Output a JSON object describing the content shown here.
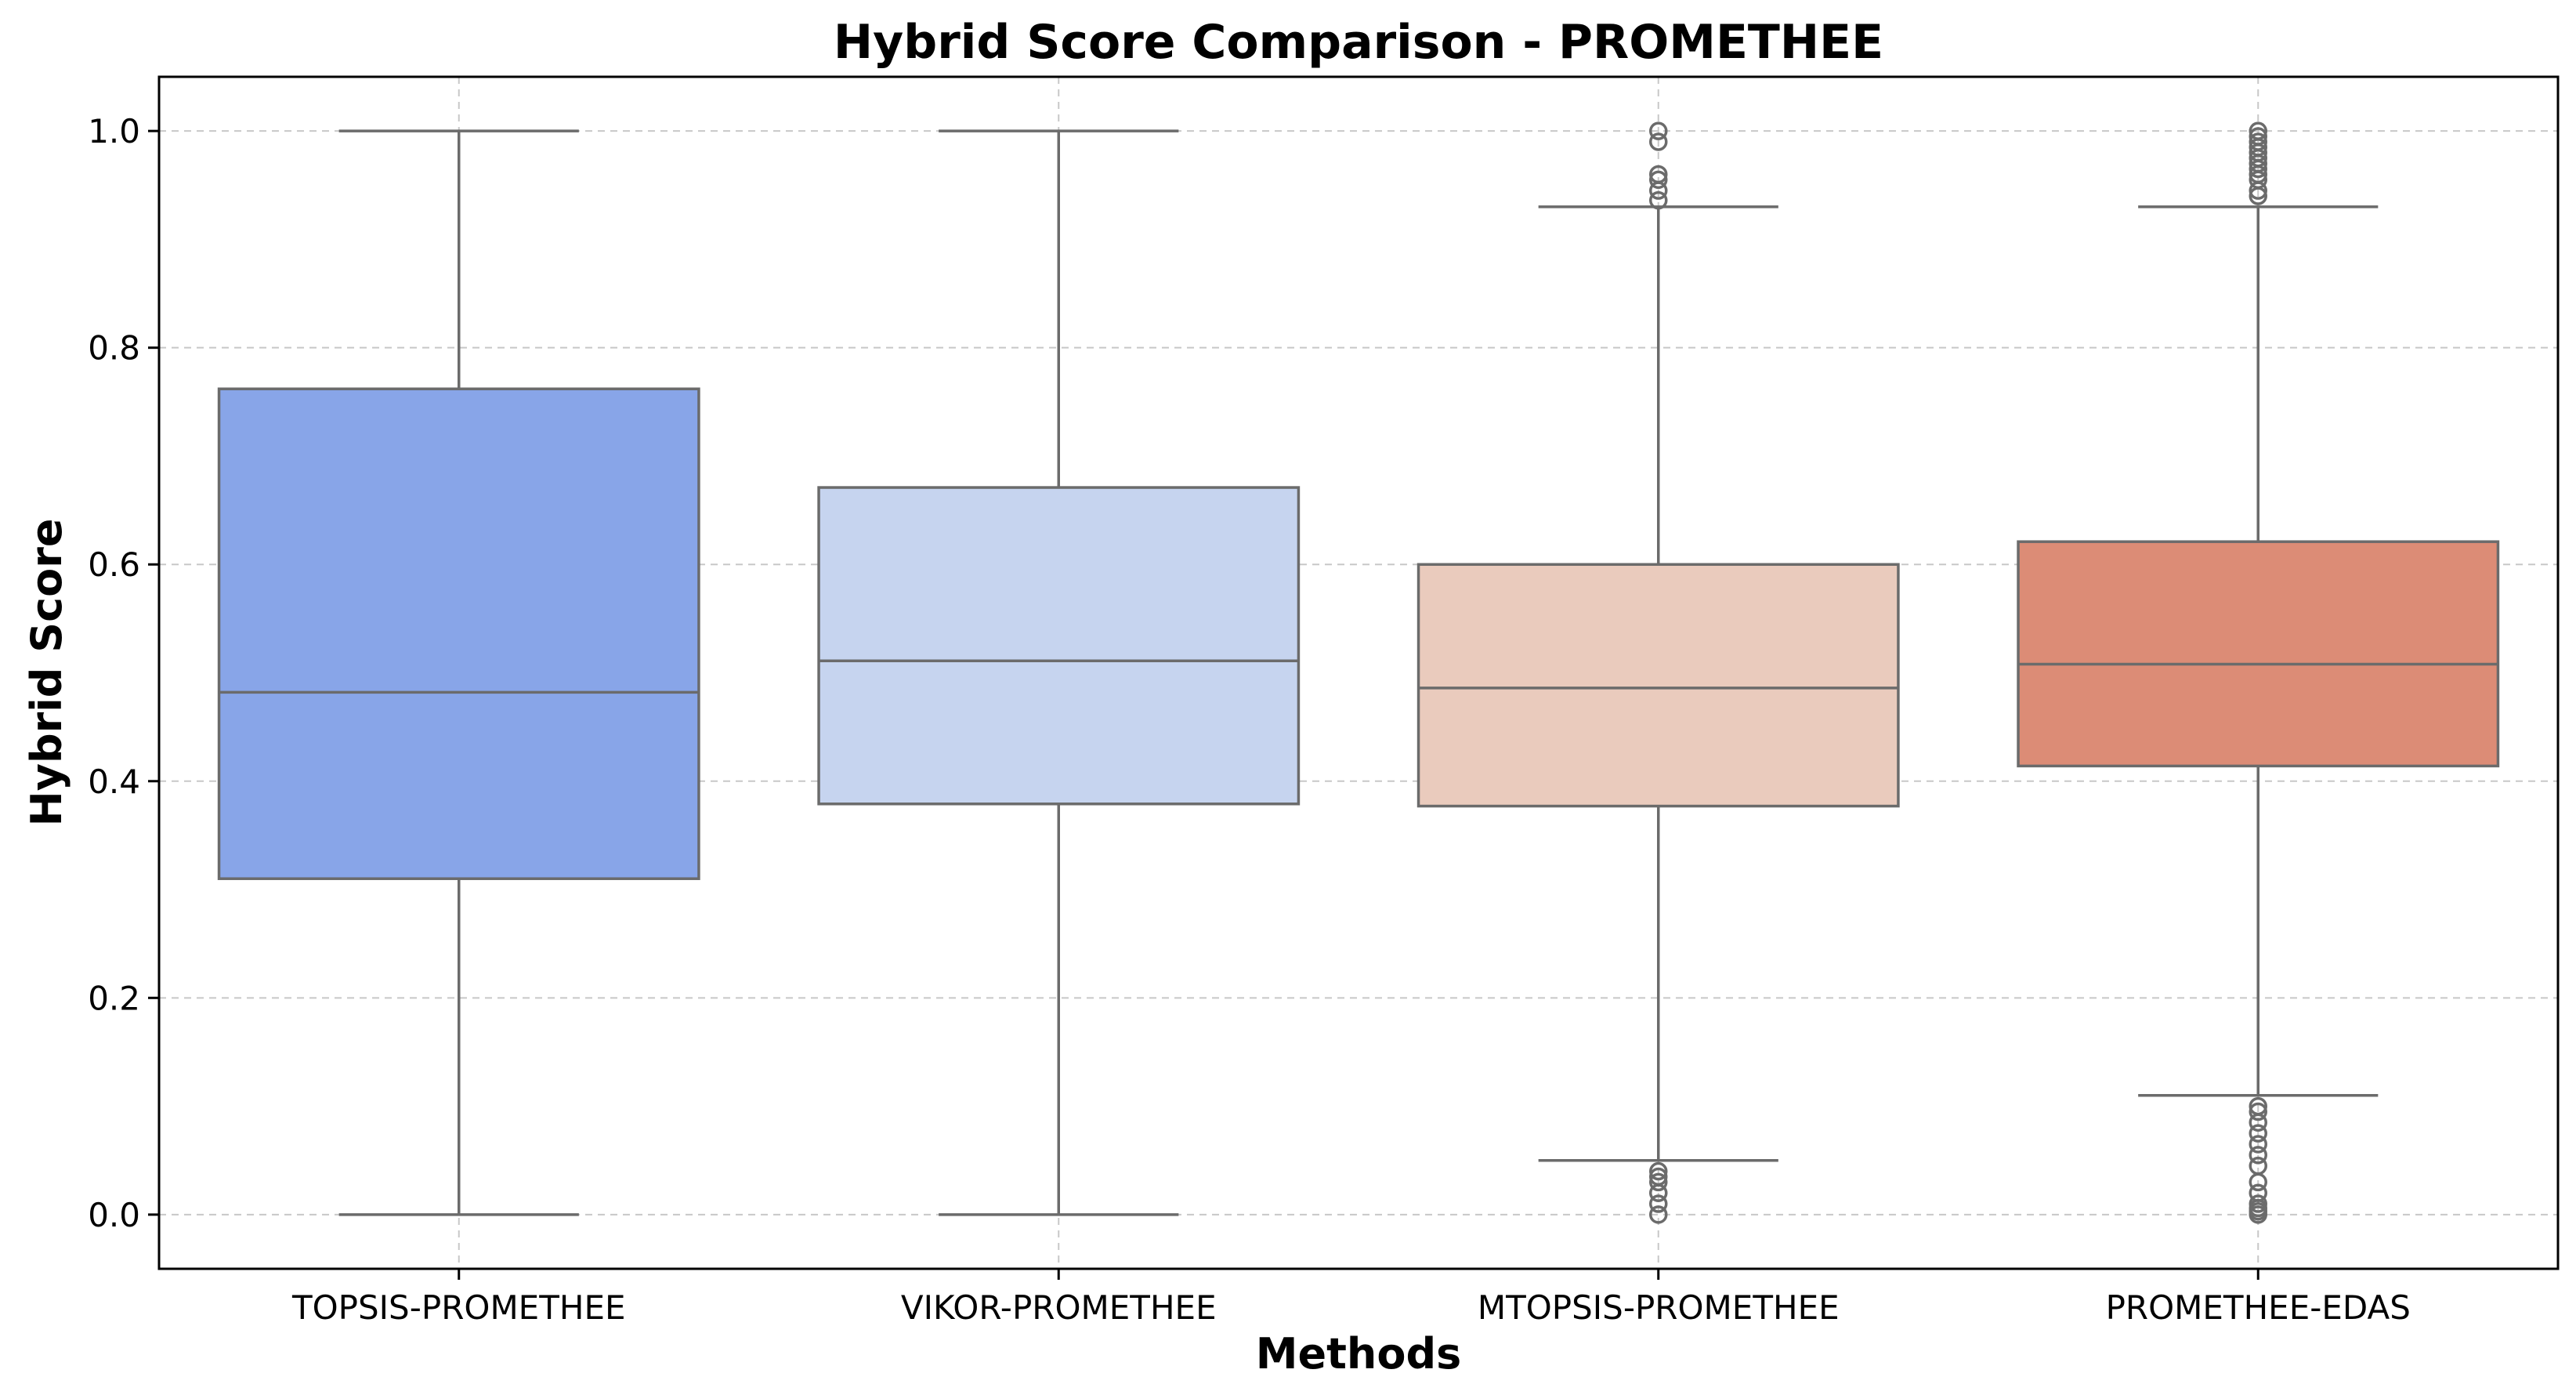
{
  "chart_data": {
    "type": "box",
    "title": "Hybrid Score Comparison - PROMETHEE",
    "xlabel": "Methods",
    "ylabel": "Hybrid Score",
    "ylim": [
      -0.05,
      1.05
    ],
    "yticks": [
      0.0,
      0.2,
      0.4,
      0.6,
      0.8,
      1.0
    ],
    "ytick_labels": [
      "0.0",
      "0.2",
      "0.4",
      "0.6",
      "0.8",
      "1.0"
    ],
    "grid": true,
    "categories": [
      "TOPSIS-PROMETHEE",
      "VIKOR-PROMETHEE",
      "MTOPSIS-PROMETHEE",
      "PROMETHEE-EDAS"
    ],
    "series": [
      {
        "color": "#88a5e8",
        "whisker_low": 0.0,
        "q1": 0.31,
        "median": 0.482,
        "q3": 0.762,
        "whisker_high": 1.0,
        "outliers": []
      },
      {
        "color": "#c6d4ef",
        "whisker_low": 0.0,
        "q1": 0.379,
        "median": 0.511,
        "q3": 0.671,
        "whisker_high": 1.0,
        "outliers": []
      },
      {
        "color": "#eacbbd",
        "whisker_low": 0.05,
        "q1": 0.377,
        "median": 0.486,
        "q3": 0.6,
        "whisker_high": 0.93,
        "outliers": [
          0.0,
          0.01,
          0.02,
          0.03,
          0.04,
          0.035,
          0.936,
          0.945,
          0.955,
          0.96,
          0.99,
          1.0
        ]
      },
      {
        "color": "#dc8c76",
        "whisker_low": 0.11,
        "q1": 0.414,
        "median": 0.508,
        "q3": 0.621,
        "whisker_high": 0.93,
        "outliers": [
          0.0,
          0.003,
          0.006,
          0.01,
          0.02,
          0.03,
          0.045,
          0.055,
          0.065,
          0.075,
          0.085,
          0.095,
          0.1,
          0.94,
          0.945,
          0.955,
          0.96,
          0.965,
          0.97,
          0.975,
          0.98,
          0.985,
          0.99,
          0.995,
          1.0
        ]
      }
    ]
  }
}
